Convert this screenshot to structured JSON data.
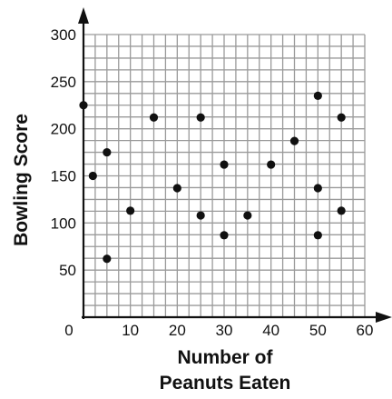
{
  "chart_data": {
    "type": "scatter",
    "title": "",
    "xlabel": [
      "Number of",
      "Peanuts Eaten"
    ],
    "ylabel": "Bowling Score",
    "xlim": [
      0,
      60
    ],
    "ylim": [
      0,
      300
    ],
    "x_ticks": [
      0,
      10,
      20,
      30,
      40,
      50,
      60
    ],
    "x_tick_labels": [
      "0",
      "10",
      "20",
      "30",
      "40",
      "50",
      "60"
    ],
    "y_ticks": [
      50,
      100,
      150,
      200,
      250,
      300
    ],
    "y_tick_labels": [
      "50",
      "100",
      "150",
      "200",
      "250",
      "300"
    ],
    "grid": true,
    "grid_minor_x": 2.5,
    "grid_minor_y": 12.5,
    "marker_color": "#111111",
    "grid_color": "#9a9a9a",
    "series": [
      {
        "points": [
          {
            "x": 0,
            "y": 225
          },
          {
            "x": 2,
            "y": 150
          },
          {
            "x": 5,
            "y": 175
          },
          {
            "x": 5,
            "y": 62
          },
          {
            "x": 10,
            "y": 113
          },
          {
            "x": 15,
            "y": 212
          },
          {
            "x": 20,
            "y": 137
          },
          {
            "x": 25,
            "y": 212
          },
          {
            "x": 25,
            "y": 108
          },
          {
            "x": 30,
            "y": 162
          },
          {
            "x": 30,
            "y": 87
          },
          {
            "x": 35,
            "y": 108
          },
          {
            "x": 40,
            "y": 162
          },
          {
            "x": 45,
            "y": 187
          },
          {
            "x": 50,
            "y": 235
          },
          {
            "x": 50,
            "y": 137
          },
          {
            "x": 50,
            "y": 87
          },
          {
            "x": 55,
            "y": 212
          },
          {
            "x": 55,
            "y": 113
          }
        ]
      }
    ]
  }
}
